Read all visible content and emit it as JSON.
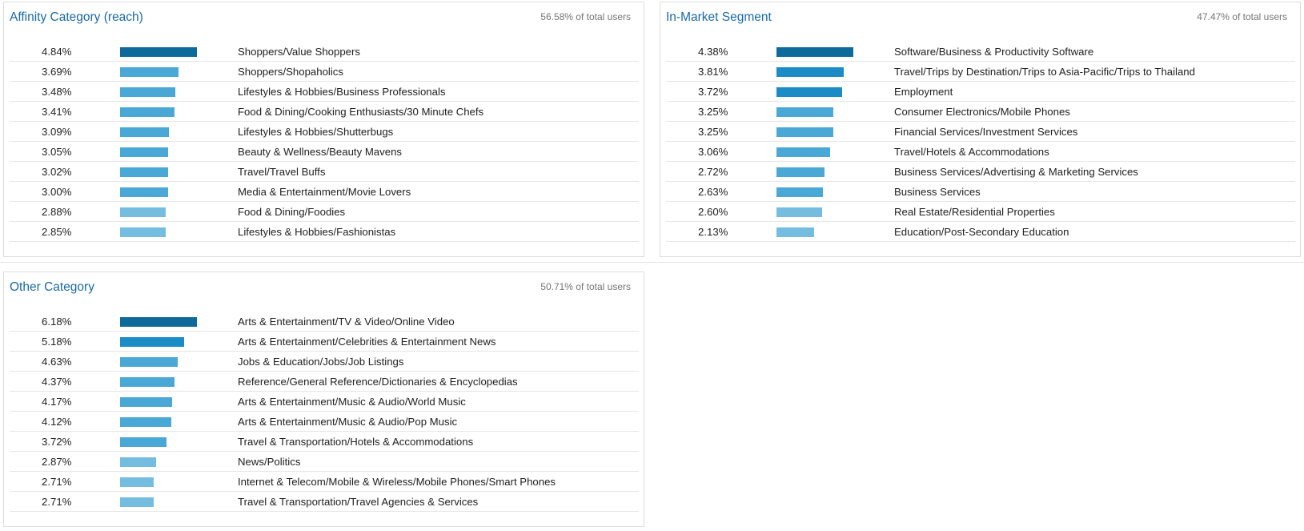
{
  "cards": [
    {
      "id": "affinity",
      "title": "Affinity Category (reach)",
      "subtitle": "56.58% of total users",
      "rows": [
        {
          "pct": "4.84%",
          "label": "Shoppers/Value Shoppers",
          "value": 4.84
        },
        {
          "pct": "3.69%",
          "label": "Shoppers/Shopaholics",
          "value": 3.69
        },
        {
          "pct": "3.48%",
          "label": "Lifestyles & Hobbies/Business Professionals",
          "value": 3.48
        },
        {
          "pct": "3.41%",
          "label": "Food & Dining/Cooking Enthusiasts/30 Minute Chefs",
          "value": 3.41
        },
        {
          "pct": "3.09%",
          "label": "Lifestyles & Hobbies/Shutterbugs",
          "value": 3.09
        },
        {
          "pct": "3.05%",
          "label": "Beauty & Wellness/Beauty Mavens",
          "value": 3.05
        },
        {
          "pct": "3.02%",
          "label": "Travel/Travel Buffs",
          "value": 3.02
        },
        {
          "pct": "3.00%",
          "label": "Media & Entertainment/Movie Lovers",
          "value": 3.0
        },
        {
          "pct": "2.88%",
          "label": "Food & Dining/Foodies",
          "value": 2.88
        },
        {
          "pct": "2.85%",
          "label": "Lifestyles & Hobbies/Fashionistas",
          "value": 2.85
        }
      ]
    },
    {
      "id": "inmarket",
      "title": "In-Market Segment",
      "subtitle": "47.47% of total users",
      "rows": [
        {
          "pct": "4.38%",
          "label": "Software/Business & Productivity Software",
          "value": 4.38
        },
        {
          "pct": "3.81%",
          "label": "Travel/Trips by Destination/Trips to Asia-Pacific/Trips to Thailand",
          "value": 3.81
        },
        {
          "pct": "3.72%",
          "label": "Employment",
          "value": 3.72
        },
        {
          "pct": "3.25%",
          "label": "Consumer Electronics/Mobile Phones",
          "value": 3.25
        },
        {
          "pct": "3.25%",
          "label": "Financial Services/Investment Services",
          "value": 3.25
        },
        {
          "pct": "3.06%",
          "label": "Travel/Hotels & Accommodations",
          "value": 3.06
        },
        {
          "pct": "2.72%",
          "label": "Business Services/Advertising & Marketing Services",
          "value": 2.72
        },
        {
          "pct": "2.63%",
          "label": "Business Services",
          "value": 2.63
        },
        {
          "pct": "2.60%",
          "label": "Real Estate/Residential Properties",
          "value": 2.6
        },
        {
          "pct": "2.13%",
          "label": "Education/Post-Secondary Education",
          "value": 2.13
        }
      ]
    },
    {
      "id": "other",
      "title": "Other Category",
      "subtitle": "50.71% of total users",
      "rows": [
        {
          "pct": "6.18%",
          "label": "Arts & Entertainment/TV & Video/Online Video",
          "value": 6.18
        },
        {
          "pct": "5.18%",
          "label": "Arts & Entertainment/Celebrities & Entertainment News",
          "value": 5.18
        },
        {
          "pct": "4.63%",
          "label": "Jobs & Education/Jobs/Job Listings",
          "value": 4.63
        },
        {
          "pct": "4.37%",
          "label": "Reference/General Reference/Dictionaries & Encyclopedias",
          "value": 4.37
        },
        {
          "pct": "4.17%",
          "label": "Arts & Entertainment/Music & Audio/World Music",
          "value": 4.17
        },
        {
          "pct": "4.12%",
          "label": "Arts & Entertainment/Music & Audio/Pop Music",
          "value": 4.12
        },
        {
          "pct": "3.72%",
          "label": "Travel & Transportation/Hotels & Accommodations",
          "value": 3.72
        },
        {
          "pct": "2.87%",
          "label": "News/Politics",
          "value": 2.87
        },
        {
          "pct": "2.71%",
          "label": "Internet & Telecom/Mobile & Wireless/Mobile Phones/Smart Phones",
          "value": 2.71
        },
        {
          "pct": "2.71%",
          "label": "Travel & Transportation/Travel Agencies & Services",
          "value": 2.71
        }
      ]
    }
  ],
  "colors": {
    "title": "#1a6aa8",
    "bar_dark": "#0e6a9a",
    "bar_mid": "#1b8cc6",
    "bar_light": "#4aa8d6",
    "bar_lighter": "#74bde0"
  }
}
